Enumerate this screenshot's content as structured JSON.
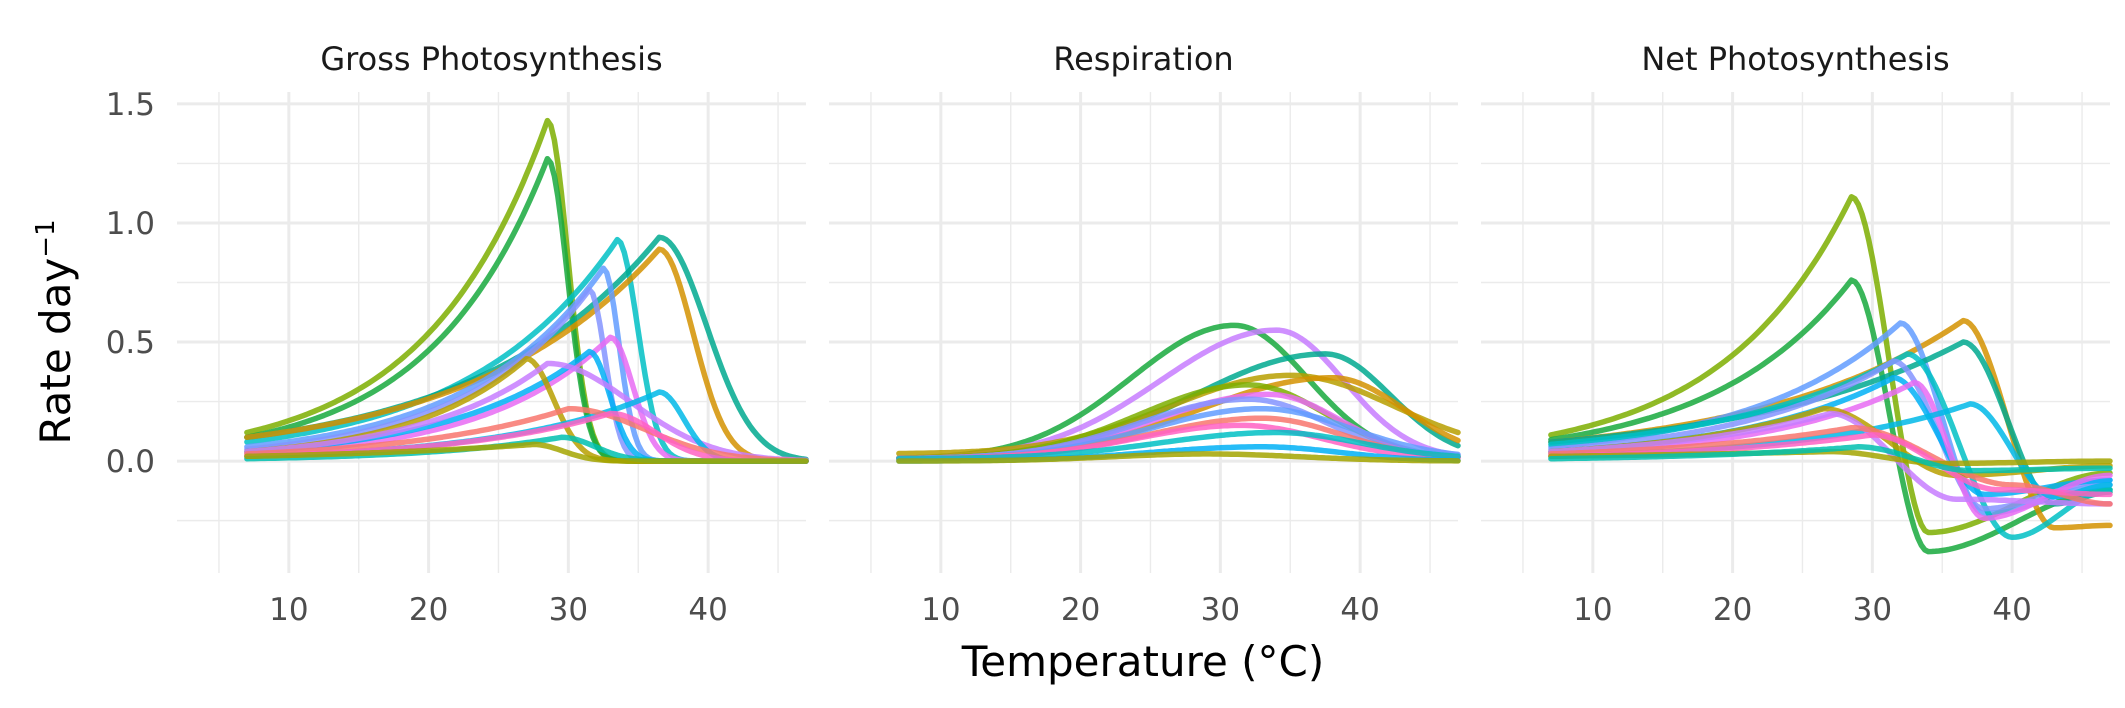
{
  "chart_data": {
    "type": "line",
    "xlabel": "Temperature (°C)",
    "ylabel": "Rate day",
    "ylabel_superscript": "−1",
    "xlim": [
      2,
      47
    ],
    "ylim": [
      -0.47,
      1.55
    ],
    "x_ticks": [
      10,
      20,
      30,
      40
    ],
    "y_ticks": [
      1.5,
      1.0,
      0.5,
      0.0
    ],
    "y_tick_labels": [
      "1.5",
      "1.0",
      "0.5",
      "0.0"
    ],
    "grid": true,
    "legend": "none",
    "x_range": [
      7,
      47
    ],
    "panels": [
      {
        "title": "Gross Photosynthesis",
        "series": [
          {
            "color": "#7cae00",
            "peak_temp": 28.5,
            "peak": 1.43,
            "base": 0.12,
            "cutoff": 33
          },
          {
            "color": "#18a93d",
            "peak_temp": 28.5,
            "peak": 1.27,
            "base": 0.1,
            "cutoff": 33
          },
          {
            "color": "#00bfc4",
            "peak_temp": 33.5,
            "peak": 0.93,
            "base": 0.08,
            "cutoff": 38
          },
          {
            "color": "#00a98f",
            "peak_temp": 36.5,
            "peak": 0.94,
            "base": 0.1,
            "cutoff": 47
          },
          {
            "color": "#d39200",
            "peak_temp": 36.5,
            "peak": 0.89,
            "base": 0.1,
            "cutoff": 44
          },
          {
            "color": "#619cff",
            "peak_temp": 32.5,
            "peak": 0.81,
            "base": 0.06,
            "cutoff": 36
          },
          {
            "color": "#8494ff",
            "peak_temp": 31.5,
            "peak": 0.72,
            "base": 0.05,
            "cutoff": 35
          },
          {
            "color": "#e76bf3",
            "peak_temp": 33.0,
            "peak": 0.52,
            "base": 0.03,
            "cutoff": 38
          },
          {
            "color": "#00b0f6",
            "peak_temp": 31.5,
            "peak": 0.46,
            "base": 0.04,
            "cutoff": 36
          },
          {
            "color": "#b79f00",
            "peak_temp": 27.0,
            "peak": 0.43,
            "base": 0.04,
            "cutoff": 33
          },
          {
            "color": "#c77cff",
            "peak_temp": 28.5,
            "peak": 0.41,
            "base": 0.04,
            "cutoff": 47
          },
          {
            "color": "#00b8e7",
            "peak_temp": 36.5,
            "peak": 0.29,
            "base": 0.02,
            "cutoff": 42
          },
          {
            "color": "#f8766d",
            "peak_temp": 30.0,
            "peak": 0.22,
            "base": 0.03,
            "cutoff": 47
          },
          {
            "color": "#ff61c3",
            "peak_temp": 33.0,
            "peak": 0.2,
            "base": 0.02,
            "cutoff": 43
          },
          {
            "color": "#00c0af",
            "peak_temp": 29.5,
            "peak": 0.1,
            "base": 0.01,
            "cutoff": 37
          },
          {
            "color": "#a3a500",
            "peak_temp": 27.5,
            "peak": 0.07,
            "base": 0.02,
            "cutoff": 34
          }
        ]
      },
      {
        "title": "Respiration",
        "series": [
          {
            "color": "#18a93d",
            "peak_temp": 31.0,
            "peak": 0.57,
            "base": 0.01,
            "cutoff": 45
          },
          {
            "color": "#c77cff",
            "peak_temp": 34.0,
            "peak": 0.55,
            "base": 0.01,
            "cutoff": 47
          },
          {
            "color": "#00a98f",
            "peak_temp": 37.5,
            "peak": 0.45,
            "base": 0.01,
            "cutoff": 50
          },
          {
            "color": "#b79f00",
            "peak_temp": 35.0,
            "peak": 0.36,
            "base": 0.03,
            "cutoff": 55
          },
          {
            "color": "#d39200",
            "peak_temp": 38.0,
            "peak": 0.35,
            "base": 0.01,
            "cutoff": 52
          },
          {
            "color": "#7cae00",
            "peak_temp": 32.0,
            "peak": 0.32,
            "base": 0.01,
            "cutoff": 47
          },
          {
            "color": "#e76bf3",
            "peak_temp": 33.5,
            "peak": 0.28,
            "base": 0.01,
            "cutoff": 47
          },
          {
            "color": "#8494ff",
            "peak_temp": 32.0,
            "peak": 0.26,
            "base": 0.01,
            "cutoff": 47
          },
          {
            "color": "#619cff",
            "peak_temp": 33.0,
            "peak": 0.22,
            "base": 0.01,
            "cutoff": 50
          },
          {
            "color": "#f8766d",
            "peak_temp": 33.0,
            "peak": 0.18,
            "base": 0.01,
            "cutoff": 48
          },
          {
            "color": "#ff61c3",
            "peak_temp": 31.5,
            "peak": 0.15,
            "base": 0.01,
            "cutoff": 47
          },
          {
            "color": "#00bfc4",
            "peak_temp": 34.0,
            "peak": 0.12,
            "base": 0.01,
            "cutoff": 50
          },
          {
            "color": "#00b0f6",
            "peak_temp": 33.0,
            "peak": 0.06,
            "base": 0.0,
            "cutoff": 48
          },
          {
            "color": "#a3a500",
            "peak_temp": 29.0,
            "peak": 0.03,
            "base": 0.0,
            "cutoff": 47
          }
        ]
      },
      {
        "title": "Net Photosynthesis",
        "series": [
          {
            "color": "#7cae00",
            "peak_temp": 28.5,
            "peak": 1.11,
            "base": 0.11,
            "cutoff": 31.5,
            "trough_temp": 34,
            "trough": -0.3,
            "end": -0.05
          },
          {
            "color": "#18a93d",
            "peak_temp": 28.5,
            "peak": 0.76,
            "base": 0.09,
            "cutoff": 31.5,
            "trough_temp": 34,
            "trough": -0.38,
            "end": -0.12
          },
          {
            "color": "#d39200",
            "peak_temp": 36.5,
            "peak": 0.59,
            "base": 0.08,
            "cutoff": 40,
            "trough_temp": 43,
            "trough": -0.28,
            "end": -0.27
          },
          {
            "color": "#619cff",
            "peak_temp": 32.0,
            "peak": 0.58,
            "base": 0.06,
            "cutoff": 35,
            "trough_temp": 38,
            "trough": -0.22,
            "end": -0.1
          },
          {
            "color": "#00a98f",
            "peak_temp": 36.5,
            "peak": 0.5,
            "base": 0.08,
            "cutoff": 40,
            "trough_temp": 43,
            "trough": -0.18,
            "end": -0.13
          },
          {
            "color": "#00bfc4",
            "peak_temp": 32.5,
            "peak": 0.45,
            "base": 0.07,
            "cutoff": 37,
            "trough_temp": 40,
            "trough": -0.32,
            "end": -0.12
          },
          {
            "color": "#8494ff",
            "peak_temp": 31.5,
            "peak": 0.42,
            "base": 0.05,
            "cutoff": 35,
            "trough_temp": 38,
            "trough": -0.2,
            "end": -0.08
          },
          {
            "color": "#00b0f6",
            "peak_temp": 31.5,
            "peak": 0.35,
            "base": 0.04,
            "cutoff": 35,
            "trough_temp": 38,
            "trough": -0.14,
            "end": -0.08
          },
          {
            "color": "#e76bf3",
            "peak_temp": 33.0,
            "peak": 0.33,
            "base": 0.03,
            "cutoff": 36,
            "trough_temp": 38,
            "trough": -0.24,
            "end": -0.06
          },
          {
            "color": "#00b8e7",
            "peak_temp": 37.0,
            "peak": 0.24,
            "base": 0.02,
            "cutoff": 40,
            "trough_temp": 43,
            "trough": -0.15,
            "end": -0.1
          },
          {
            "color": "#b79f00",
            "peak_temp": 26.5,
            "peak": 0.22,
            "base": 0.04,
            "cutoff": 31,
            "trough_temp": 36,
            "trough": -0.06,
            "end": -0.02
          },
          {
            "color": "#c77cff",
            "peak_temp": 27.0,
            "peak": 0.2,
            "base": 0.04,
            "cutoff": 31,
            "trough_temp": 36,
            "trough": -0.16,
            "end": -0.18
          },
          {
            "color": "#f8766d",
            "peak_temp": 28.5,
            "peak": 0.14,
            "base": 0.03,
            "cutoff": 34,
            "trough_temp": 40,
            "trough": -0.1,
            "end": -0.18
          },
          {
            "color": "#ff61c3",
            "peak_temp": 30.0,
            "peak": 0.11,
            "base": 0.02,
            "cutoff": 34,
            "trough_temp": 39,
            "trough": -0.12,
            "end": -0.14
          },
          {
            "color": "#a3a500",
            "peak_temp": 27.0,
            "peak": 0.04,
            "base": 0.02,
            "cutoff": 31,
            "trough_temp": 35,
            "trough": -0.01,
            "end": 0.0
          },
          {
            "color": "#00c0af",
            "peak_temp": 29.0,
            "peak": 0.06,
            "base": 0.01,
            "cutoff": 33,
            "trough_temp": 37,
            "trough": -0.04,
            "end": -0.03
          }
        ]
      }
    ]
  }
}
